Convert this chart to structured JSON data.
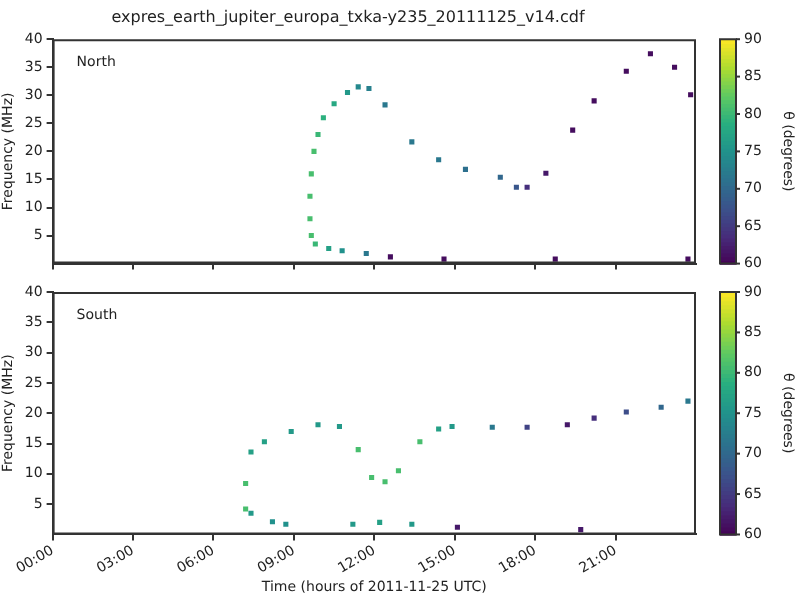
{
  "chart_data": [
    {
      "type": "scatter",
      "title": "expres_earth_jupiter_europa_txka-y235_20111125_v14.cdf",
      "ylabel": "Frequency (MHz)",
      "clabel": "θ (degrees)",
      "annotations": [
        "North"
      ],
      "marker": "square",
      "grid": false,
      "legend": false,
      "tick_labels": "y",
      "xlim": [
        0,
        24
      ],
      "xticks": [
        0,
        3,
        6,
        9,
        12,
        15,
        18,
        21
      ],
      "ylim": [
        0,
        40
      ],
      "yticks": [
        5,
        10,
        15,
        20,
        25,
        30,
        35,
        40
      ],
      "clim": [
        60,
        90
      ],
      "cticks": [
        60,
        65,
        70,
        75,
        80,
        85,
        90
      ],
      "series": [
        {
          "x": [
            12.6,
            14.6,
            18.75,
            23.7,
            11.7,
            10.8,
            10.3,
            9.8,
            9.65,
            9.6,
            9.6,
            9.65,
            9.75,
            9.9,
            10.1,
            10.5,
            11,
            11.4,
            11.8,
            12.4,
            13.4,
            14.4,
            15.4,
            16.7,
            17.3,
            17.7,
            18.4,
            19.4,
            20.2,
            21.4,
            22.3,
            23.2,
            23.8
          ],
          "values": [
            1.2,
            0.8,
            0.8,
            0.8,
            1.8,
            2.3,
            2.7,
            3.5,
            5,
            8,
            12,
            16,
            20,
            23,
            26,
            28.5,
            30.5,
            31.5,
            31.2,
            28.3,
            21.7,
            18.5,
            16.8,
            15.4,
            13.6,
            13.6,
            16.1,
            23.8,
            29,
            34.3,
            37.4,
            35,
            30.1
          ],
          "cvalues": [
            61,
            61,
            61,
            61,
            72,
            75,
            77,
            80,
            81,
            81,
            81,
            81,
            81,
            80,
            79,
            78,
            76,
            74,
            73,
            72,
            72,
            72,
            71,
            70,
            68,
            64,
            62,
            61,
            61,
            61,
            61,
            61,
            61
          ]
        }
      ]
    },
    {
      "type": "scatter",
      "xlabel": "Time (hours of 2011-11-25 UTC)",
      "ylabel": "Frequency (MHz)",
      "clabel": "θ (degrees)",
      "annotations": [
        "South"
      ],
      "marker": "square",
      "grid": false,
      "legend": false,
      "xlim": [
        0,
        24
      ],
      "xticks": [
        {
          "value": 0,
          "label": "00:00"
        },
        {
          "value": 3,
          "label": "03:00"
        },
        {
          "value": 6,
          "label": "06:00"
        },
        {
          "value": 9,
          "label": "09:00"
        },
        {
          "value": 12,
          "label": "12:00"
        },
        {
          "value": 15,
          "label": "15:00"
        },
        {
          "value": 18,
          "label": "18:00"
        },
        {
          "value": 21,
          "label": "21:00"
        }
      ],
      "ylim": [
        0,
        40
      ],
      "yticks": [
        5,
        10,
        15,
        20,
        25,
        30,
        35,
        40
      ],
      "clim": [
        60,
        90
      ],
      "cticks": [
        60,
        65,
        70,
        75,
        80,
        85,
        90
      ],
      "series": [
        {
          "x": [
            7.2,
            7.2,
            7.4,
            7.9,
            8.9,
            9.9,
            10.7,
            11.4,
            11.9,
            12.4,
            12.9,
            13.7,
            14.4,
            14.9,
            16.4,
            17.7,
            19.2,
            20.2,
            21.4,
            22.7,
            23.7,
            7.4,
            8.2,
            8.7,
            11.2,
            12.2,
            13.4,
            15.1,
            19.7
          ],
          "values": [
            4.2,
            8.4,
            13.6,
            15.3,
            17,
            18.1,
            17.8,
            14,
            9.4,
            8.7,
            10.5,
            15.3,
            17.4,
            17.8,
            17.7,
            17.7,
            18.1,
            19.2,
            20.2,
            21,
            22,
            3.5,
            2.1,
            1.7,
            1.7,
            2,
            1.7,
            1.2,
            0.8
          ],
          "cvalues": [
            81,
            81,
            77,
            77,
            76,
            76,
            76,
            81,
            81,
            81,
            81,
            81,
            77,
            76,
            72,
            66,
            62,
            64,
            67,
            70,
            72,
            76,
            75,
            75,
            76,
            77,
            76,
            62,
            62
          ]
        }
      ]
    }
  ]
}
